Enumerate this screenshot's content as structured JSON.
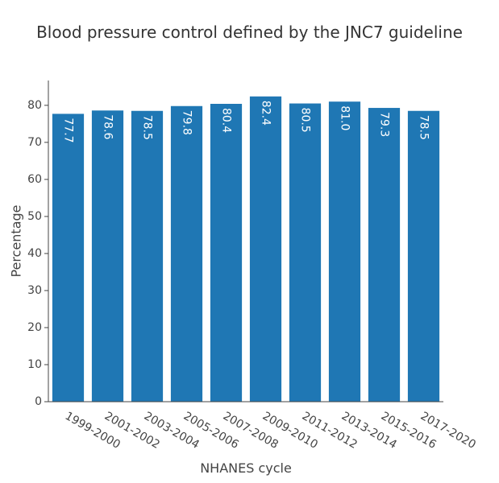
{
  "chart_data": {
    "type": "bar",
    "title": "Blood pressure control defined by the JNC7 guideline",
    "xlabel": "NHANES cycle",
    "ylabel": "Percentage",
    "categories": [
      "1999-2000",
      "2001-2002",
      "2003-2004",
      "2005-2006",
      "2007-2008",
      "2009-2010",
      "2011-2012",
      "2013-2014",
      "2015-2016",
      "2017-2020"
    ],
    "values": [
      77.7,
      78.6,
      78.5,
      79.8,
      80.4,
      82.4,
      80.5,
      81.0,
      79.3,
      78.5
    ],
    "data_labels": [
      "77.7",
      "78.6",
      "78.5",
      "79.8",
      "80.4",
      "82.4",
      "80.5",
      "81.0",
      "79.3",
      "78.5"
    ],
    "yticks": [
      0,
      10,
      20,
      30,
      40,
      50,
      60,
      70,
      80
    ],
    "ylim": [
      0,
      86.7
    ],
    "grid": false,
    "bar_color": "#1f77b4"
  }
}
